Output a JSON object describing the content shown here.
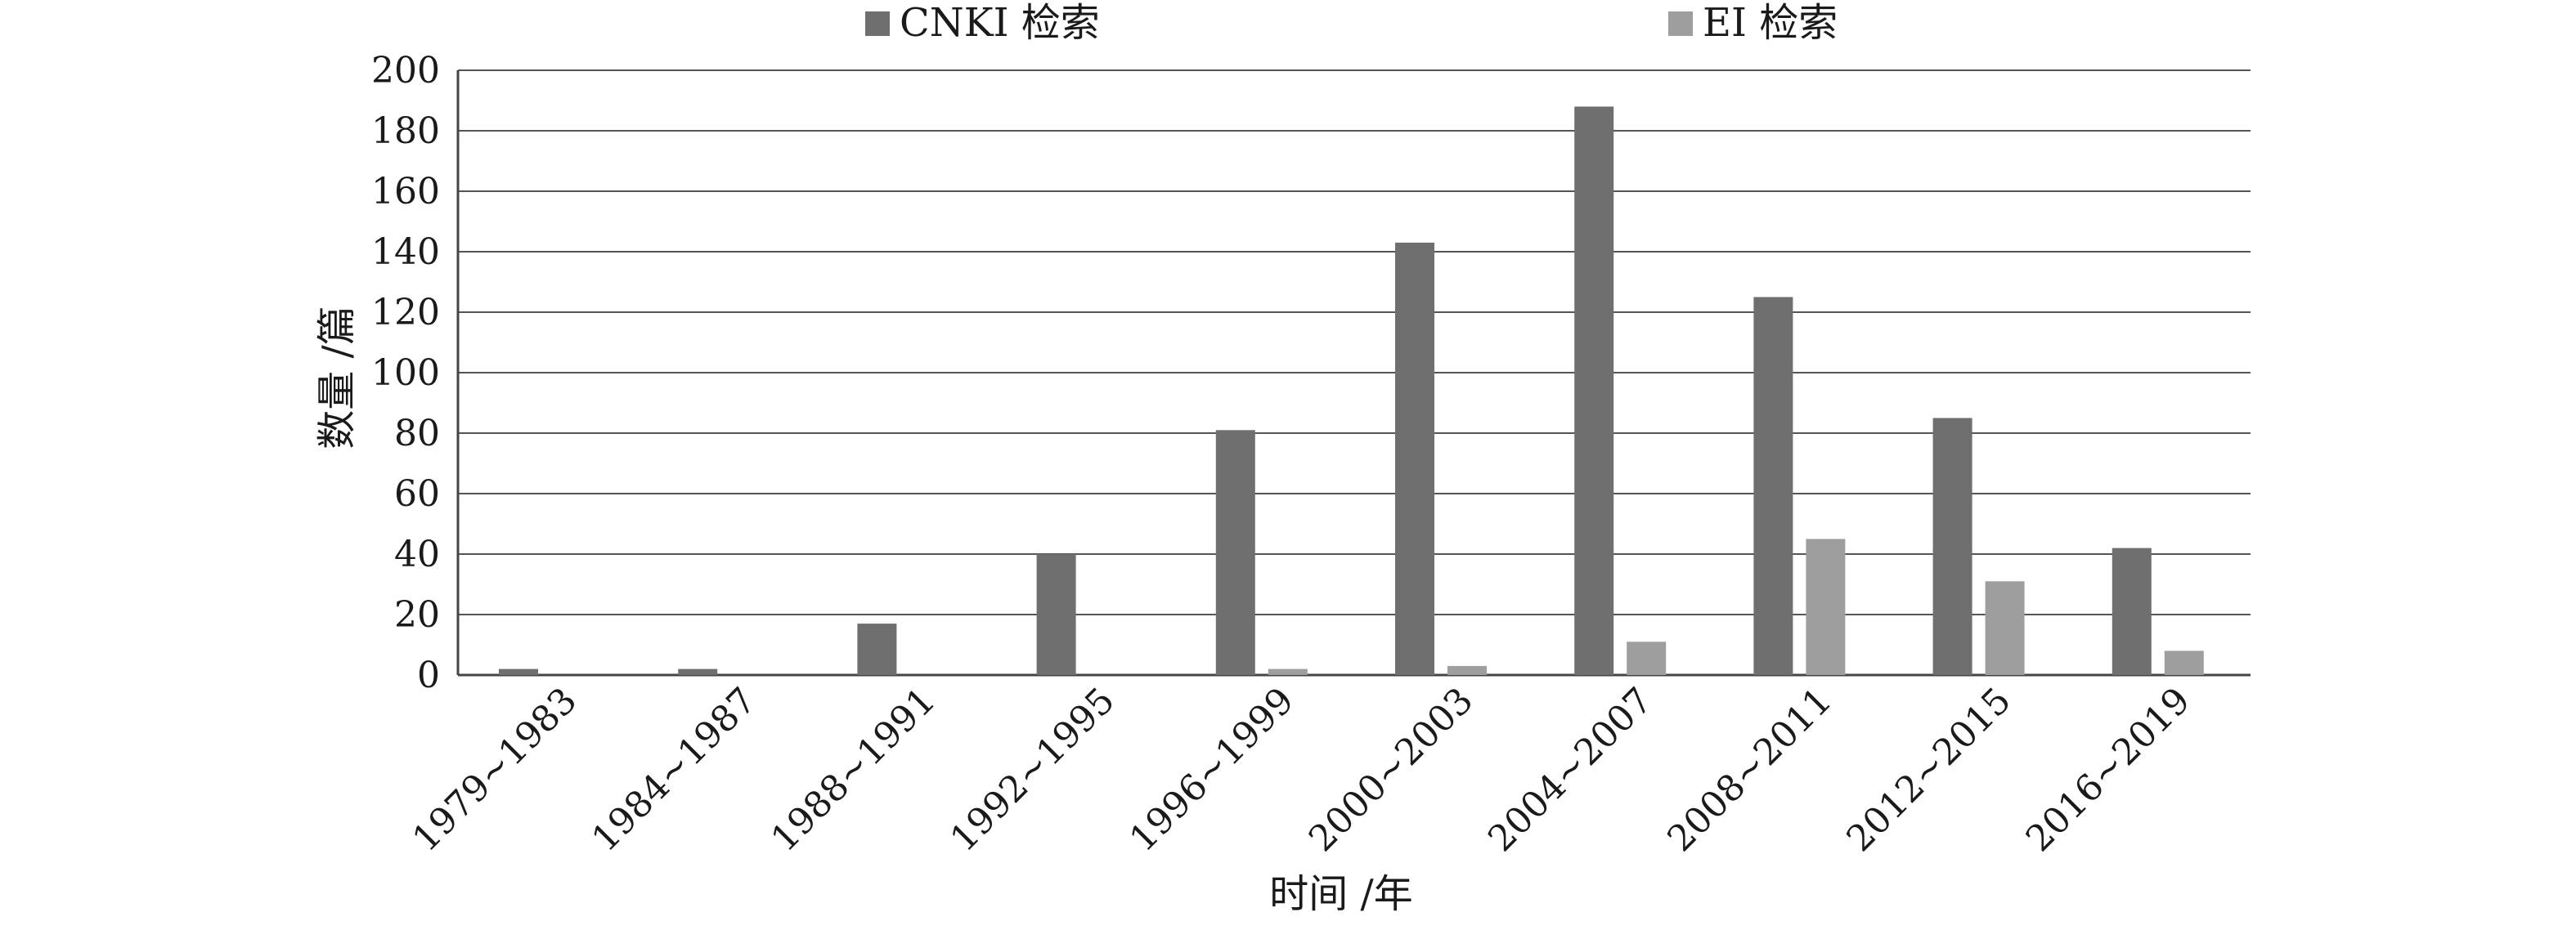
{
  "chart_data": {
    "type": "bar",
    "xlabel": "时间 /年",
    "ylabel": "数量 /篇",
    "ylim": [
      0,
      200
    ],
    "yticks": [
      0,
      20,
      40,
      60,
      80,
      100,
      120,
      140,
      160,
      180,
      200
    ],
    "grid": true,
    "legend_position": "top",
    "categories": [
      "1979~1983",
      "1984~1987",
      "1988~1991",
      "1992~1995",
      "1996~1999",
      "2000~2003",
      "2004~2007",
      "2008~2011",
      "2012~2015",
      "2016~2019"
    ],
    "series": [
      {
        "name": "CNKI 检索",
        "color": "#6f6f6f",
        "values": [
          2,
          2,
          17,
          40,
          81,
          143,
          188,
          125,
          85,
          42
        ]
      },
      {
        "name": "EI 检索",
        "color": "#9e9e9e",
        "values": [
          0,
          0,
          0,
          0,
          2,
          3,
          11,
          45,
          31,
          8
        ]
      }
    ]
  }
}
